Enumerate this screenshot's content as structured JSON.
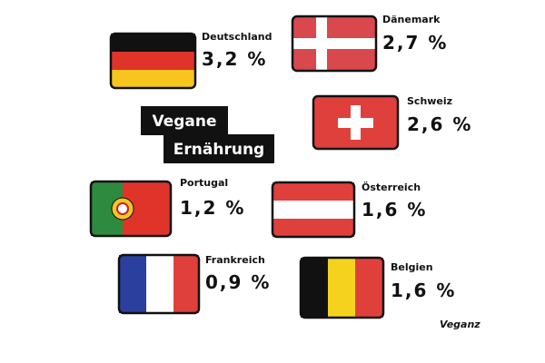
{
  "title": [
    "Vegane",
    "Ernährung"
  ],
  "items": [
    {
      "country": "Deutschland",
      "value": "3,2 %"
    },
    {
      "country": "Dänemark",
      "value": "2,7 %"
    },
    {
      "country": "Schweiz",
      "value": "2,6 %"
    },
    {
      "country": "Portugal",
      "value": "1,2 %"
    },
    {
      "country": "Österreich",
      "value": "1,6 %"
    },
    {
      "country": "Frankreich",
      "value": "0,9 %"
    },
    {
      "country": "Belgien",
      "value": "1,6 %"
    }
  ],
  "logo": "Veganz"
}
